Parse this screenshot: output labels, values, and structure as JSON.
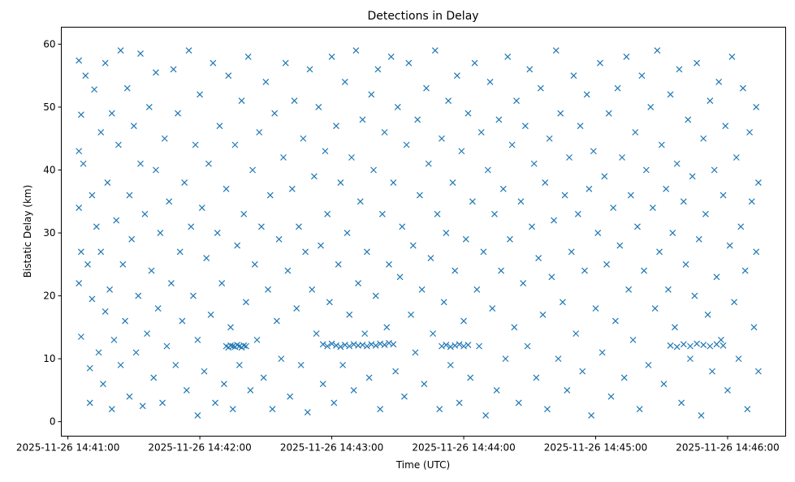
{
  "chart_data": {
    "type": "scatter",
    "title": "Detections in Delay",
    "xlabel": "Time (UTC)",
    "ylabel": "Bistatic Delay (km)",
    "x_units": "seconds after 2025-11-26 14:41:00",
    "xlim": [
      -3,
      326.4
    ],
    "ylim": [
      -2.3,
      62.7
    ],
    "grid": false,
    "marker": "x",
    "color": "#1f77b4",
    "x_ticks": [
      {
        "value": 0,
        "label": "2025-11-26 14:41:00"
      },
      {
        "value": 60,
        "label": "2025-11-26 14:42:00"
      },
      {
        "value": 120,
        "label": "2025-11-26 14:43:00"
      },
      {
        "value": 180,
        "label": "2025-11-26 14:44:00"
      },
      {
        "value": 240,
        "label": "2025-11-26 14:45:00"
      },
      {
        "value": 300,
        "label": "2025-11-26 14:46:00"
      }
    ],
    "y_ticks": [
      {
        "value": 0,
        "label": "0"
      },
      {
        "value": 10,
        "label": "10"
      },
      {
        "value": 20,
        "label": "20"
      },
      {
        "value": 30,
        "label": "30"
      },
      {
        "value": 40,
        "label": "40"
      },
      {
        "value": 50,
        "label": "50"
      },
      {
        "value": 60,
        "label": "60"
      }
    ],
    "points": [
      [
        5,
        57.4
      ],
      [
        5,
        43
      ],
      [
        5,
        34
      ],
      [
        5,
        22
      ],
      [
        6,
        13.5
      ],
      [
        6,
        48.8
      ],
      [
        6,
        27
      ],
      [
        7,
        41
      ],
      [
        8,
        55
      ],
      [
        9,
        25
      ],
      [
        10,
        8.5
      ],
      [
        10,
        3
      ],
      [
        11,
        19.5
      ],
      [
        11,
        36
      ],
      [
        12,
        52.8
      ],
      [
        13,
        31
      ],
      [
        14,
        11
      ],
      [
        15,
        46
      ],
      [
        15,
        27
      ],
      [
        16,
        6
      ],
      [
        17,
        57
      ],
      [
        17,
        17.5
      ],
      [
        18,
        38
      ],
      [
        19,
        21
      ],
      [
        20,
        2
      ],
      [
        20,
        49
      ],
      [
        21,
        13
      ],
      [
        22,
        32
      ],
      [
        23,
        44
      ],
      [
        24,
        9
      ],
      [
        24,
        59
      ],
      [
        25,
        25
      ],
      [
        26,
        16
      ],
      [
        27,
        53
      ],
      [
        28,
        4
      ],
      [
        28,
        36
      ],
      [
        29,
        29
      ],
      [
        30,
        47
      ],
      [
        31,
        11
      ],
      [
        32,
        20
      ],
      [
        33,
        41
      ],
      [
        33,
        58.5
      ],
      [
        34,
        2.5
      ],
      [
        35,
        33
      ],
      [
        36,
        14
      ],
      [
        37,
        50
      ],
      [
        38,
        24
      ],
      [
        39,
        7
      ],
      [
        40,
        40
      ],
      [
        40,
        55.5
      ],
      [
        41,
        18
      ],
      [
        42,
        30
      ],
      [
        43,
        3
      ],
      [
        44,
        45
      ],
      [
        45,
        12
      ],
      [
        46,
        35
      ],
      [
        47,
        22
      ],
      [
        48,
        56
      ],
      [
        49,
        9
      ],
      [
        50,
        49
      ],
      [
        51,
        27
      ],
      [
        52,
        16
      ],
      [
        53,
        38
      ],
      [
        54,
        5
      ],
      [
        55,
        59
      ],
      [
        56,
        31
      ],
      [
        57,
        20
      ],
      [
        58,
        44
      ],
      [
        59,
        1
      ],
      [
        59,
        13
      ],
      [
        60,
        52
      ],
      [
        61,
        34
      ],
      [
        62,
        8
      ],
      [
        63,
        26
      ],
      [
        64,
        41
      ],
      [
        65,
        17
      ],
      [
        66,
        57
      ],
      [
        67,
        3
      ],
      [
        68,
        30
      ],
      [
        69,
        47
      ],
      [
        70,
        22
      ],
      [
        71,
        6
      ],
      [
        72,
        37
      ],
      [
        73,
        55
      ],
      [
        74,
        15
      ],
      [
        75,
        2
      ],
      [
        76,
        44
      ],
      [
        77,
        28
      ],
      [
        78,
        9
      ],
      [
        79,
        51
      ],
      [
        80,
        33
      ],
      [
        81,
        19
      ],
      [
        82,
        58
      ],
      [
        83,
        5
      ],
      [
        84,
        40
      ],
      [
        85,
        25
      ],
      [
        86,
        13
      ],
      [
        87,
        46
      ],
      [
        88,
        31
      ],
      [
        89,
        7
      ],
      [
        90,
        54
      ],
      [
        91,
        21
      ],
      [
        92,
        36
      ],
      [
        93,
        2
      ],
      [
        94,
        49
      ],
      [
        95,
        16
      ],
      [
        96,
        29
      ],
      [
        97,
        10
      ],
      [
        98,
        42
      ],
      [
        99,
        57
      ],
      [
        100,
        24
      ],
      [
        101,
        4
      ],
      [
        102,
        37
      ],
      [
        103,
        51
      ],
      [
        104,
        18
      ],
      [
        105,
        31
      ],
      [
        106,
        9
      ],
      [
        107,
        45
      ],
      [
        108,
        27
      ],
      [
        109,
        1.5
      ],
      [
        110,
        56
      ],
      [
        111,
        21
      ],
      [
        112,
        39
      ],
      [
        113,
        14
      ],
      [
        114,
        50
      ],
      [
        115,
        28
      ],
      [
        116,
        6
      ],
      [
        117,
        43
      ],
      [
        118,
        33
      ],
      [
        119,
        19
      ],
      [
        120,
        58
      ],
      [
        121,
        3
      ],
      [
        122,
        47
      ],
      [
        123,
        25
      ],
      [
        124,
        38
      ],
      [
        125,
        9
      ],
      [
        126,
        54
      ],
      [
        127,
        30
      ],
      [
        128,
        17
      ],
      [
        129,
        42
      ],
      [
        130,
        5
      ],
      [
        131,
        59
      ],
      [
        132,
        22
      ],
      [
        133,
        35
      ],
      [
        134,
        48
      ],
      [
        135,
        14
      ],
      [
        136,
        27
      ],
      [
        137,
        7
      ],
      [
        138,
        52
      ],
      [
        139,
        40
      ],
      [
        140,
        20
      ],
      [
        141,
        56
      ],
      [
        142,
        2
      ],
      [
        143,
        33
      ],
      [
        144,
        46
      ],
      [
        145,
        15
      ],
      [
        146,
        25
      ],
      [
        147,
        58
      ],
      [
        148,
        38
      ],
      [
        149,
        8
      ],
      [
        150,
        50
      ],
      [
        151,
        23
      ],
      [
        152,
        31
      ],
      [
        153,
        4
      ],
      [
        154,
        44
      ],
      [
        155,
        57
      ],
      [
        156,
        17
      ],
      [
        157,
        28
      ],
      [
        158,
        11
      ],
      [
        159,
        48
      ],
      [
        160,
        36
      ],
      [
        161,
        21
      ],
      [
        162,
        6
      ],
      [
        163,
        53
      ],
      [
        164,
        41
      ],
      [
        165,
        26
      ],
      [
        166,
        14
      ],
      [
        167,
        59
      ],
      [
        168,
        33
      ],
      [
        169,
        2
      ],
      [
        170,
        45
      ],
      [
        171,
        19
      ],
      [
        172,
        30
      ],
      [
        173,
        51
      ],
      [
        174,
        9
      ],
      [
        175,
        38
      ],
      [
        176,
        24
      ],
      [
        177,
        55
      ],
      [
        178,
        3
      ],
      [
        179,
        43
      ],
      [
        180,
        16
      ],
      [
        181,
        29
      ],
      [
        182,
        49
      ],
      [
        183,
        7
      ],
      [
        184,
        35
      ],
      [
        185,
        57
      ],
      [
        186,
        21
      ],
      [
        187,
        12
      ],
      [
        188,
        46
      ],
      [
        189,
        27
      ],
      [
        190,
        1
      ],
      [
        191,
        40
      ],
      [
        192,
        54
      ],
      [
        193,
        18
      ],
      [
        194,
        33
      ],
      [
        195,
        5
      ],
      [
        196,
        48
      ],
      [
        197,
        24
      ],
      [
        198,
        37
      ],
      [
        199,
        10
      ],
      [
        200,
        58
      ],
      [
        201,
        29
      ],
      [
        202,
        44
      ],
      [
        203,
        15
      ],
      [
        204,
        51
      ],
      [
        205,
        3
      ],
      [
        206,
        35
      ],
      [
        207,
        22
      ],
      [
        208,
        47
      ],
      [
        209,
        12
      ],
      [
        210,
        56
      ],
      [
        211,
        31
      ],
      [
        212,
        41
      ],
      [
        213,
        7
      ],
      [
        214,
        26
      ],
      [
        215,
        53
      ],
      [
        216,
        17
      ],
      [
        217,
        38
      ],
      [
        218,
        2
      ],
      [
        219,
        45
      ],
      [
        220,
        23
      ],
      [
        221,
        32
      ],
      [
        222,
        59
      ],
      [
        223,
        10
      ],
      [
        224,
        49
      ],
      [
        225,
        19
      ],
      [
        226,
        36
      ],
      [
        227,
        5
      ],
      [
        228,
        42
      ],
      [
        229,
        27
      ],
      [
        230,
        55
      ],
      [
        231,
        14
      ],
      [
        232,
        33
      ],
      [
        233,
        47
      ],
      [
        234,
        8
      ],
      [
        235,
        24
      ],
      [
        236,
        52
      ],
      [
        237,
        37
      ],
      [
        238,
        1
      ],
      [
        239,
        43
      ],
      [
        240,
        18
      ],
      [
        241,
        30
      ],
      [
        242,
        57
      ],
      [
        243,
        11
      ],
      [
        244,
        39
      ],
      [
        245,
        25
      ],
      [
        246,
        49
      ],
      [
        247,
        4
      ],
      [
        248,
        34
      ],
      [
        249,
        16
      ],
      [
        250,
        53
      ],
      [
        251,
        28
      ],
      [
        252,
        42
      ],
      [
        253,
        7
      ],
      [
        254,
        58
      ],
      [
        255,
        21
      ],
      [
        256,
        36
      ],
      [
        257,
        13
      ],
      [
        258,
        46
      ],
      [
        259,
        31
      ],
      [
        260,
        2
      ],
      [
        261,
        55
      ],
      [
        262,
        24
      ],
      [
        263,
        40
      ],
      [
        264,
        9
      ],
      [
        265,
        50
      ],
      [
        266,
        34
      ],
      [
        267,
        18
      ],
      [
        268,
        59
      ],
      [
        269,
        27
      ],
      [
        270,
        44
      ],
      [
        271,
        6
      ],
      [
        272,
        37
      ],
      [
        273,
        21
      ],
      [
        274,
        52
      ],
      [
        275,
        30
      ],
      [
        276,
        15
      ],
      [
        277,
        41
      ],
      [
        278,
        56
      ],
      [
        279,
        3
      ],
      [
        280,
        35
      ],
      [
        281,
        25
      ],
      [
        282,
        48
      ],
      [
        283,
        10
      ],
      [
        284,
        39
      ],
      [
        285,
        20
      ],
      [
        286,
        57
      ],
      [
        287,
        29
      ],
      [
        288,
        1
      ],
      [
        289,
        45
      ],
      [
        290,
        33
      ],
      [
        291,
        17
      ],
      [
        292,
        51
      ],
      [
        293,
        8
      ],
      [
        294,
        40
      ],
      [
        295,
        23
      ],
      [
        296,
        54
      ],
      [
        297,
        13
      ],
      [
        298,
        36
      ],
      [
        299,
        47
      ],
      [
        300,
        5
      ],
      [
        301,
        28
      ],
      [
        302,
        58
      ],
      [
        303,
        19
      ],
      [
        304,
        42
      ],
      [
        305,
        10
      ],
      [
        306,
        31
      ],
      [
        307,
        53
      ],
      [
        308,
        24
      ],
      [
        309,
        2
      ],
      [
        310,
        46
      ],
      [
        311,
        35
      ],
      [
        312,
        15
      ],
      [
        313,
        50
      ],
      [
        313,
        27
      ],
      [
        314,
        8
      ],
      [
        314,
        38
      ],
      [
        72,
        12
      ],
      [
        73,
        11.8
      ],
      [
        74,
        12.1
      ],
      [
        75,
        12
      ],
      [
        76,
        11.9
      ],
      [
        77,
        12.2
      ],
      [
        78,
        12
      ],
      [
        79,
        11.8
      ],
      [
        80,
        12.1
      ],
      [
        81,
        12
      ],
      [
        116,
        12.3
      ],
      [
        118,
        12
      ],
      [
        120,
        12.4
      ],
      [
        122,
        12.1
      ],
      [
        124,
        11.9
      ],
      [
        126,
        12.2
      ],
      [
        128,
        12
      ],
      [
        130,
        12.3
      ],
      [
        132,
        12.1
      ],
      [
        134,
        12.2
      ],
      [
        136,
        12
      ],
      [
        138,
        12.3
      ],
      [
        140,
        12.1
      ],
      [
        142,
        12.4
      ],
      [
        144,
        12.2
      ],
      [
        146,
        12.5
      ],
      [
        148,
        12.3
      ],
      [
        170,
        12
      ],
      [
        172,
        12.2
      ],
      [
        174,
        11.9
      ],
      [
        176,
        12.1
      ],
      [
        178,
        12.3
      ],
      [
        180,
        12
      ],
      [
        182,
        12.2
      ],
      [
        274,
        12.1
      ],
      [
        277,
        11.9
      ],
      [
        280,
        12.3
      ],
      [
        283,
        12
      ],
      [
        286,
        12.4
      ],
      [
        289,
        12.2
      ],
      [
        292,
        12
      ],
      [
        295,
        12.3
      ],
      [
        298,
        12.1
      ]
    ]
  }
}
